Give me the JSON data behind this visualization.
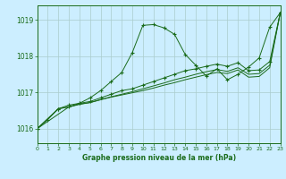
{
  "title": "Graphe pression niveau de la mer (hPa)",
  "bg_color": "#cceeff",
  "grid_color": "#aacccc",
  "line_color": "#1a6b1a",
  "xlim": [
    0,
    23
  ],
  "ylim": [
    1015.6,
    1019.4
  ],
  "yticks": [
    1016,
    1017,
    1018,
    1019
  ],
  "xticks": [
    0,
    1,
    2,
    3,
    4,
    5,
    6,
    7,
    8,
    9,
    10,
    11,
    12,
    13,
    14,
    15,
    16,
    17,
    18,
    19,
    20,
    21,
    22,
    23
  ],
  "series": [
    {
      "x": [
        0,
        1,
        2,
        3,
        4,
        5,
        6,
        7,
        8,
        9,
        10,
        11,
        12,
        13,
        14,
        15,
        16,
        17,
        18,
        19,
        20,
        21,
        22,
        23
      ],
      "y": [
        1016.0,
        1016.25,
        1016.55,
        1016.65,
        1016.7,
        1016.85,
        1017.05,
        1017.3,
        1017.55,
        1018.1,
        1018.85,
        1018.87,
        1018.78,
        1018.6,
        1018.05,
        1017.75,
        1017.45,
        1017.65,
        1017.35,
        1017.5,
        1017.7,
        1017.95,
        1018.8,
        1019.2
      ],
      "marker": "+"
    },
    {
      "x": [
        0,
        2,
        3,
        4,
        5,
        6,
        7,
        8,
        9,
        10,
        11,
        12,
        13,
        14,
        15,
        16,
        17,
        18,
        19,
        20,
        21,
        22,
        23
      ],
      "y": [
        1016.0,
        1016.55,
        1016.6,
        1016.7,
        1016.75,
        1016.85,
        1016.95,
        1017.05,
        1017.1,
        1017.2,
        1017.3,
        1017.4,
        1017.5,
        1017.6,
        1017.65,
        1017.72,
        1017.78,
        1017.72,
        1017.82,
        1017.6,
        1017.62,
        1017.85,
        1019.2
      ],
      "marker": "+"
    },
    {
      "x": [
        0,
        2,
        3,
        4,
        5,
        6,
        7,
        8,
        9,
        10,
        11,
        12,
        13,
        14,
        15,
        16,
        17,
        18,
        19,
        20,
        21,
        22,
        23
      ],
      "y": [
        1016.0,
        1016.55,
        1016.6,
        1016.68,
        1016.72,
        1016.8,
        1016.88,
        1016.95,
        1017.02,
        1017.1,
        1017.18,
        1017.26,
        1017.35,
        1017.42,
        1017.5,
        1017.57,
        1017.63,
        1017.58,
        1017.68,
        1017.5,
        1017.52,
        1017.75,
        1019.2
      ],
      "marker": null
    },
    {
      "x": [
        0,
        3,
        4,
        5,
        6,
        7,
        8,
        9,
        10,
        11,
        12,
        13,
        14,
        15,
        16,
        17,
        18,
        19,
        20,
        21,
        22,
        23
      ],
      "y": [
        1016.0,
        1016.6,
        1016.67,
        1016.72,
        1016.8,
        1016.87,
        1016.93,
        1016.99,
        1017.05,
        1017.12,
        1017.2,
        1017.27,
        1017.35,
        1017.42,
        1017.49,
        1017.55,
        1017.52,
        1017.62,
        1017.42,
        1017.44,
        1017.68,
        1019.2
      ],
      "marker": null
    }
  ]
}
